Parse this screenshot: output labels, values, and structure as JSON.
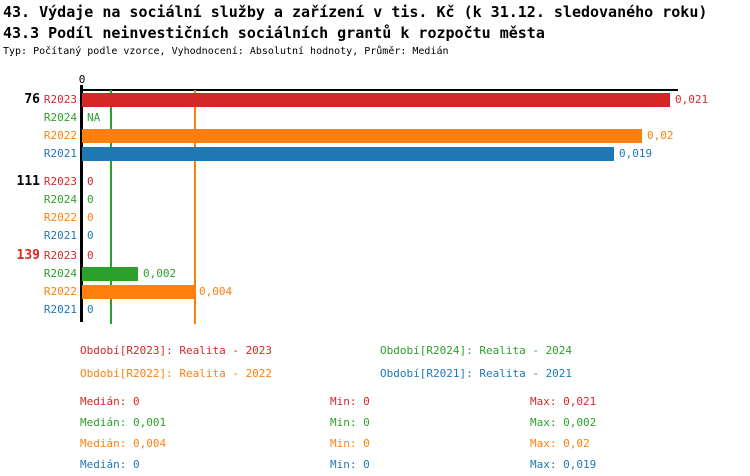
{
  "title": {
    "line1": "43. Výdaje na sociální služby a zařízení v tis. Kč (k 31.12. sledovaného roku)",
    "line2": "43.3 Podíl neinvestičních sociálních grantů k rozpočtu města",
    "meta": "Typ: Počítaný podle vzorce, Vyhodnocení: Absolutní hodnoty, Průměr: Medián"
  },
  "colors": {
    "r2023": "#d62728",
    "r2024": "#2ca02c",
    "r2022": "#ff7f0e",
    "r2021": "#1f77b4",
    "axis": "#000000",
    "highlight_group": "#d62728"
  },
  "chart_data": {
    "type": "bar",
    "orientation": "horizontal",
    "axis_zero_label": "0",
    "xlim": [
      0,
      0.0215
    ],
    "grid": false,
    "groups": [
      {
        "label": "76",
        "highlighted": false,
        "rows": [
          {
            "series": "R2023",
            "value": 0.021,
            "display": "0,021"
          },
          {
            "series": "R2024",
            "value": null,
            "display": "NA"
          },
          {
            "series": "R2022",
            "value": 0.02,
            "display": "0,02"
          },
          {
            "series": "R2021",
            "value": 0.019,
            "display": "0,019"
          }
        ]
      },
      {
        "label": "111",
        "highlighted": false,
        "rows": [
          {
            "series": "R2023",
            "value": 0,
            "display": "0"
          },
          {
            "series": "R2024",
            "value": 0,
            "display": "0"
          },
          {
            "series": "R2022",
            "value": 0,
            "display": "0"
          },
          {
            "series": "R2021",
            "value": 0,
            "display": "0"
          }
        ]
      },
      {
        "label": "139",
        "highlighted": true,
        "rows": [
          {
            "series": "R2023",
            "value": 0,
            "display": "0"
          },
          {
            "series": "R2024",
            "value": 0.002,
            "display": "0,002"
          },
          {
            "series": "R2022",
            "value": 0.004,
            "display": "0,004"
          },
          {
            "series": "R2021",
            "value": 0,
            "display": "0"
          }
        ]
      }
    ],
    "median_lines": [
      {
        "series": "R2024",
        "value": 0.001,
        "color_key": "r2024"
      },
      {
        "series": "R2022",
        "value": 0.004,
        "color_key": "r2022"
      }
    ],
    "legend": [
      {
        "label": "Období[R2023]: Realita - 2023",
        "color_key": "r2023"
      },
      {
        "label": "Období[R2024]: Realita - 2024",
        "color_key": "r2024"
      },
      {
        "label": "Období[R2022]: Realita - 2022",
        "color_key": "r2022"
      },
      {
        "label": "Období[R2021]: Realita - 2021",
        "color_key": "r2021"
      }
    ]
  },
  "stats": {
    "rows": [
      {
        "median": "Medián: 0",
        "min": "Min: 0",
        "max": "Max: 0,021",
        "color_key": "r2023"
      },
      {
        "median": "Medián: 0,001",
        "min": "Min: 0",
        "max": "Max: 0,002",
        "color_key": "r2024"
      },
      {
        "median": "Medián: 0,004",
        "min": "Min: 0",
        "max": "Max: 0,02",
        "color_key": "r2022"
      },
      {
        "median": "Medián: 0",
        "min": "Min: 0",
        "max": "Max: 0,019",
        "color_key": "r2021"
      }
    ]
  }
}
